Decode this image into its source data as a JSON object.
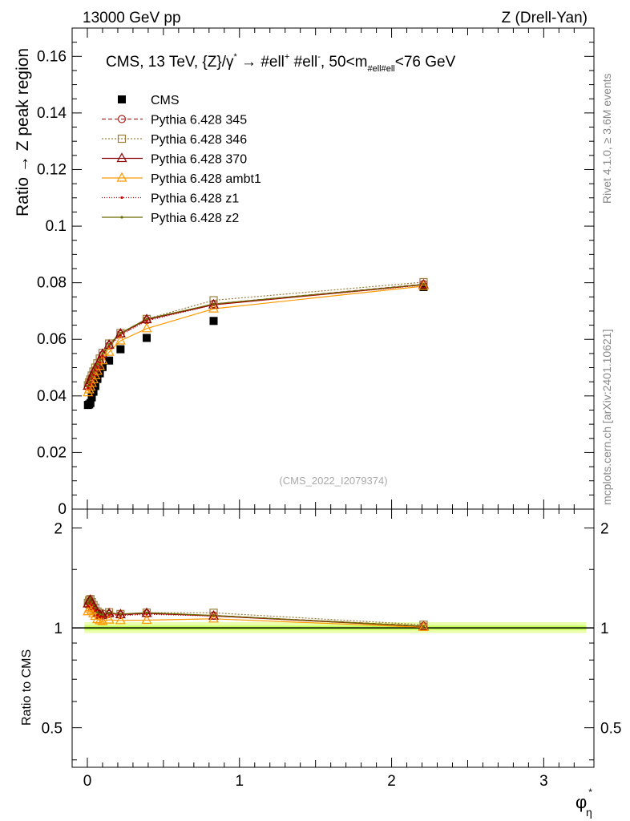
{
  "header": {
    "left": "13000 GeV pp",
    "right": "Z (Drell-Yan)"
  },
  "side": {
    "rivet": "Rivet 4.1.0, ≥ 3.6M events",
    "mcplots": "mcplots.cern.ch [arXiv:2401.10621]"
  },
  "title": {
    "main": "CMS, 13 TeV, {Z}/γ",
    "star": "*",
    "arrow": " →  #ell",
    "p1": "+",
    "mid": " #ell",
    "p2": "-",
    "range": ", 50<m",
    "sub": "#ell#ell",
    "end": "<76 GeV"
  },
  "watermark": "(CMS_2022_I2079374)",
  "xlabel": {
    "main": "φ",
    "sup": "*",
    "sub": "η"
  },
  "colors": {
    "band": "#d9ff66",
    "axis": "#000000"
  },
  "chart_data": [
    {
      "type": "scatter",
      "ylabel": "Ratio → Z peak region",
      "xlim": [
        -0.1,
        3.33
      ],
      "ylim": [
        0,
        0.17
      ],
      "ticks": [
        "0",
        "0.02",
        "0.04",
        "0.06",
        "0.08",
        "0.1",
        "0.12",
        "0.14",
        "0.16"
      ],
      "tick_values": [
        0,
        0.02,
        0.04,
        0.06,
        0.08,
        0.1,
        0.12,
        0.14,
        0.16
      ],
      "x": [
        0.004,
        0.012,
        0.02,
        0.029,
        0.04,
        0.052,
        0.066,
        0.082,
        0.1,
        0.143,
        0.218,
        0.39,
        0.83,
        2.21
      ],
      "series": [
        {
          "name": "CMS",
          "style": "data",
          "color": "#000000",
          "marker": "square",
          "values": [
            0.0368,
            0.037,
            0.0375,
            0.0395,
            0.0415,
            0.0435,
            0.046,
            0.048,
            0.0502,
            0.0525,
            0.0565,
            0.0605,
            0.0665,
            0.0785
          ]
        },
        {
          "name": "Pythia 6.428 345",
          "color": "#b22222",
          "dash": "5,3",
          "marker": "circle",
          "values": [
            0.0432,
            0.0442,
            0.0452,
            0.0465,
            0.0478,
            0.0492,
            0.0505,
            0.0522,
            0.0545,
            0.0578,
            0.0618,
            0.0668,
            0.0725,
            0.0795
          ]
        },
        {
          "name": "Pythia 6.428 346",
          "color": "#9a7d3a",
          "dash": "2,2",
          "marker": "square-open",
          "values": [
            0.0438,
            0.0448,
            0.0458,
            0.0472,
            0.0486,
            0.05,
            0.0515,
            0.0532,
            0.0552,
            0.0585,
            0.0622,
            0.0672,
            0.0738,
            0.0802
          ]
        },
        {
          "name": "Pythia 6.428 370",
          "color": "#8b0000",
          "dash": "",
          "marker": "triangle",
          "values": [
            0.0435,
            0.0445,
            0.0455,
            0.0468,
            0.0482,
            0.0496,
            0.0508,
            0.0525,
            0.0548,
            0.058,
            0.062,
            0.067,
            0.0722,
            0.0793
          ]
        },
        {
          "name": "Pythia 6.428 ambt1",
          "color": "#ff9900",
          "dash": "",
          "marker": "triangle",
          "values": [
            0.0412,
            0.0422,
            0.0432,
            0.0445,
            0.0458,
            0.0472,
            0.0488,
            0.0505,
            0.0525,
            0.0555,
            0.0595,
            0.0638,
            0.0708,
            0.0788
          ]
        },
        {
          "name": "Pythia 6.428 z1",
          "color": "#cc0000",
          "dash": "1,2",
          "marker": "dot",
          "values": [
            0.0428,
            0.0438,
            0.0448,
            0.0462,
            0.0475,
            0.049,
            0.0502,
            0.0518,
            0.0542,
            0.0575,
            0.0615,
            0.0665,
            0.0722,
            0.0792
          ]
        },
        {
          "name": "Pythia 6.428 z2",
          "color": "#6b6b00",
          "dash": "",
          "marker": "dot",
          "values": [
            0.0436,
            0.0448,
            0.046,
            0.0472,
            0.0486,
            0.05,
            0.0512,
            0.0528,
            0.055,
            0.0582,
            0.0622,
            0.0672,
            0.0725,
            0.0794
          ]
        }
      ]
    },
    {
      "type": "scatter",
      "ylabel": "Ratio to CMS",
      "xlim": [
        -0.1,
        3.33
      ],
      "ylim": [
        0.38,
        2.28
      ],
      "log_y": true,
      "ticks": [
        "0.5",
        "1",
        "2"
      ],
      "tick_values": [
        0.5,
        1,
        2
      ],
      "xticks": [
        "0",
        "1",
        "2",
        "3"
      ],
      "xtick_values": [
        0,
        1,
        2,
        3
      ],
      "x": [
        0.004,
        0.012,
        0.02,
        0.029,
        0.04,
        0.052,
        0.066,
        0.082,
        0.1,
        0.143,
        0.218,
        0.39,
        0.83,
        2.21
      ],
      "series": [
        {
          "name": "Pythia 6.428 345",
          "color": "#b22222",
          "dash": "5,3",
          "marker": "circle",
          "values": [
            1.174,
            1.195,
            1.205,
            1.177,
            1.152,
            1.131,
            1.098,
            1.088,
            1.086,
            1.101,
            1.094,
            1.104,
            1.09,
            1.013
          ]
        },
        {
          "name": "Pythia 6.428 346",
          "color": "#9a7d3a",
          "dash": "2,2",
          "marker": "square-open",
          "values": [
            1.19,
            1.211,
            1.221,
            1.195,
            1.171,
            1.149,
            1.12,
            1.108,
            1.1,
            1.114,
            1.101,
            1.111,
            1.11,
            1.022
          ]
        },
        {
          "name": "Pythia 6.428 370",
          "color": "#8b0000",
          "dash": "",
          "marker": "triangle",
          "values": [
            1.182,
            1.203,
            1.213,
            1.185,
            1.161,
            1.14,
            1.104,
            1.094,
            1.092,
            1.105,
            1.097,
            1.107,
            1.086,
            1.01
          ]
        },
        {
          "name": "Pythia 6.428 ambt1",
          "color": "#ff9900",
          "dash": "",
          "marker": "triangle",
          "values": [
            1.12,
            1.141,
            1.152,
            1.127,
            1.104,
            1.085,
            1.061,
            1.052,
            1.046,
            1.057,
            1.053,
            1.055,
            1.065,
            1.004
          ]
        },
        {
          "name": "Pythia 6.428 z1",
          "color": "#cc0000",
          "dash": "1,2",
          "marker": "dot",
          "values": [
            1.163,
            1.184,
            1.195,
            1.17,
            1.145,
            1.126,
            1.091,
            1.079,
            1.08,
            1.095,
            1.088,
            1.099,
            1.086,
            1.009
          ]
        },
        {
          "name": "Pythia 6.428 z2",
          "color": "#6b6b00",
          "dash": "",
          "marker": "dot",
          "values": [
            1.185,
            1.211,
            1.227,
            1.195,
            1.171,
            1.149,
            1.113,
            1.1,
            1.096,
            1.109,
            1.101,
            1.111,
            1.09,
            1.011
          ]
        }
      ]
    }
  ]
}
